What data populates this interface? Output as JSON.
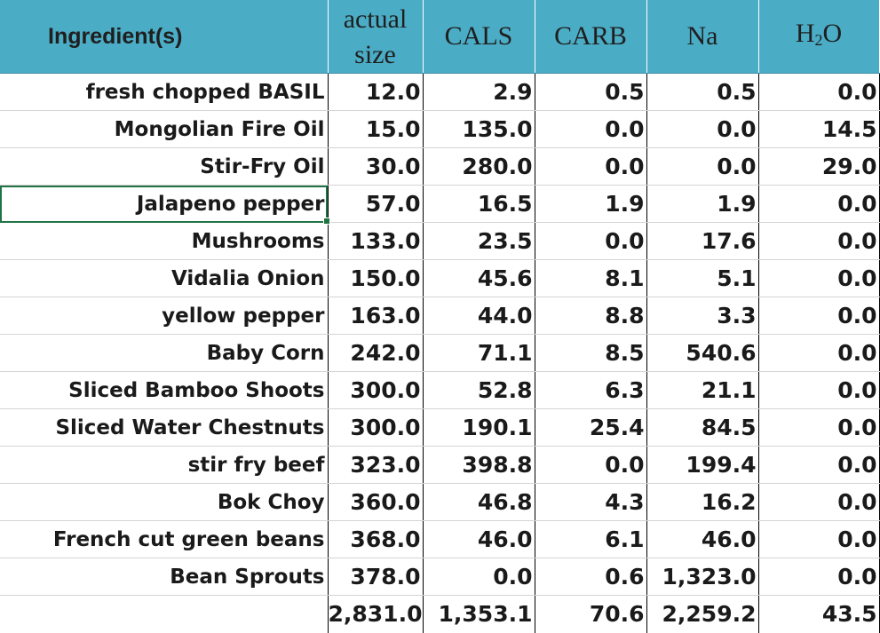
{
  "headers": {
    "name": "Ingredient(s)",
    "size_line1": "actual",
    "size_line2": "size",
    "cals": "CALS",
    "carb": "CARB",
    "na": "Na",
    "h2o_h": "H",
    "h2o_sub": "2",
    "h2o_o": "O"
  },
  "rows": [
    {
      "name": "fresh chopped BASIL",
      "size": "12.0",
      "cals": "2.9",
      "carb": "0.5",
      "na": "0.5",
      "h2o": "0.0"
    },
    {
      "name": "Mongolian Fire Oil",
      "size": "15.0",
      "cals": "135.0",
      "carb": "0.0",
      "na": "0.0",
      "h2o": "14.5"
    },
    {
      "name": "Stir-Fry Oil",
      "size": "30.0",
      "cals": "280.0",
      "carb": "0.0",
      "na": "0.0",
      "h2o": "29.0"
    },
    {
      "name": "Jalapeno pepper",
      "size": "57.0",
      "cals": "16.5",
      "carb": "1.9",
      "na": "1.9",
      "h2o": "0.0"
    },
    {
      "name": "Mushrooms",
      "size": "133.0",
      "cals": "23.5",
      "carb": "0.0",
      "na": "17.6",
      "h2o": "0.0"
    },
    {
      "name": "Vidalia Onion",
      "size": "150.0",
      "cals": "45.6",
      "carb": "8.1",
      "na": "5.1",
      "h2o": "0.0"
    },
    {
      "name": "yellow pepper",
      "size": "163.0",
      "cals": "44.0",
      "carb": "8.8",
      "na": "3.3",
      "h2o": "0.0"
    },
    {
      "name": "Baby Corn",
      "size": "242.0",
      "cals": "71.1",
      "carb": "8.5",
      "na": "540.6",
      "h2o": "0.0"
    },
    {
      "name": "Sliced Bamboo Shoots",
      "size": "300.0",
      "cals": "52.8",
      "carb": "6.3",
      "na": "21.1",
      "h2o": "0.0"
    },
    {
      "name": "Sliced Water Chestnuts",
      "size": "300.0",
      "cals": "190.1",
      "carb": "25.4",
      "na": "84.5",
      "h2o": "0.0"
    },
    {
      "name": "stir fry beef",
      "size": "323.0",
      "cals": "398.8",
      "carb": "0.0",
      "na": "199.4",
      "h2o": "0.0"
    },
    {
      "name": "Bok Choy",
      "size": "360.0",
      "cals": "46.8",
      "carb": "4.3",
      "na": "16.2",
      "h2o": "0.0"
    },
    {
      "name": "French cut green beans",
      "size": "368.0",
      "cals": "46.0",
      "carb": "6.1",
      "na": "46.0",
      "h2o": "0.0"
    },
    {
      "name": "Bean Sprouts",
      "size": "378.0",
      "cals": "0.0",
      "carb": "0.6",
      "na": "1,323.0",
      "h2o": "0.0"
    }
  ],
  "totals": {
    "size": "2,831.0",
    "cals": "1,353.1",
    "carb": "70.6",
    "na": "2,259.2",
    "h2o": "43.5"
  },
  "colors": {
    "header_bg": "#4bacc6",
    "selection": "#217346"
  }
}
